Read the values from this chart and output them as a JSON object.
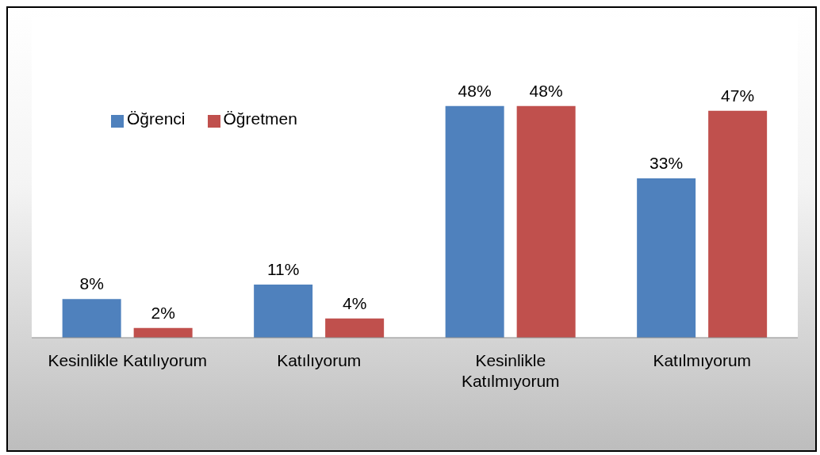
{
  "chart_data": {
    "type": "bar",
    "categories": [
      "Kesinlikle Katılıyorum",
      "Katılıyorum",
      "Kesinlikle Katılmıyorum",
      "Katılmıyorum"
    ],
    "series": [
      {
        "name": "Öğrenci",
        "color": "#4f81bd",
        "values": [
          8,
          11,
          48,
          33
        ],
        "value_labels": [
          "8%",
          "11%",
          "48%",
          "33%"
        ]
      },
      {
        "name": "Öğretmen",
        "color": "#c0504d",
        "values": [
          2,
          4,
          48,
          47
        ],
        "value_labels": [
          "2%",
          "4%",
          "48%",
          "47%"
        ]
      }
    ],
    "legend": "top left",
    "grid": false
  }
}
